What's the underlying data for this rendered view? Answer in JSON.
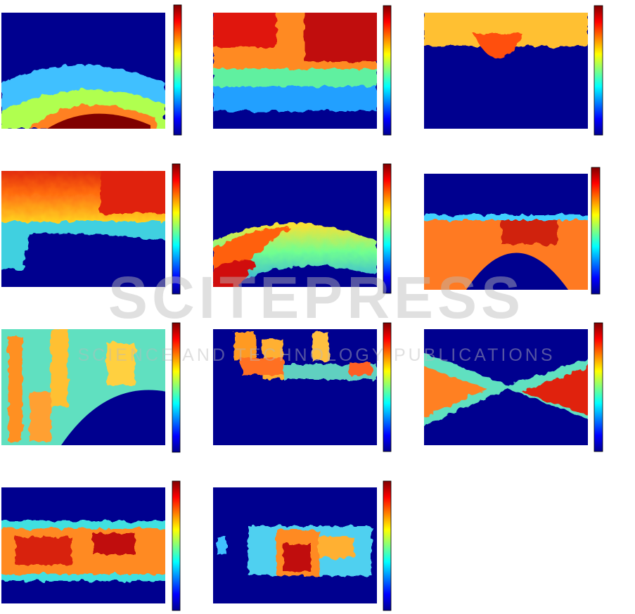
{
  "watermark": {
    "title": "SCITEPRESS",
    "subtitle": "SCIENCE AND TECHNOLOGY PUBLICATIONS"
  }
}
